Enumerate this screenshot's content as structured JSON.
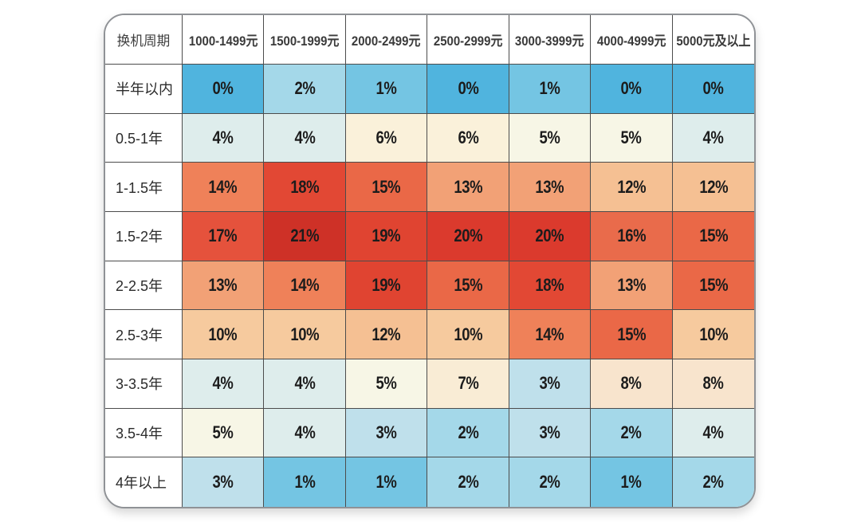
{
  "chart_data": {
    "type": "heatmap",
    "title": "",
    "corner_label": "换机周期",
    "columns": [
      "1000-1499元",
      "1500-1999元",
      "2000-2499元",
      "2500-2999元",
      "3000-3999元",
      "4000-4999元",
      "5000元及以上"
    ],
    "rows": [
      "半年以内",
      "0.5-1年",
      "1-1.5年",
      "1.5-2年",
      "2-2.5年",
      "2.5-3年",
      "3-3.5年",
      "3.5-4年",
      "4年以上"
    ],
    "values": [
      [
        0,
        2,
        1,
        0,
        1,
        0,
        0
      ],
      [
        4,
        4,
        6,
        6,
        5,
        5,
        4
      ],
      [
        14,
        18,
        15,
        13,
        13,
        12,
        12
      ],
      [
        17,
        21,
        19,
        20,
        20,
        16,
        15
      ],
      [
        13,
        14,
        19,
        15,
        18,
        13,
        15
      ],
      [
        10,
        10,
        12,
        10,
        14,
        15,
        10
      ],
      [
        4,
        4,
        5,
        7,
        3,
        8,
        8
      ],
      [
        5,
        4,
        3,
        2,
        3,
        2,
        4
      ],
      [
        3,
        1,
        1,
        2,
        2,
        1,
        2
      ]
    ],
    "unit": "%",
    "value_range": [
      0,
      21
    ],
    "legend": "none",
    "color_scale": {
      "0": "#50B4DE",
      "1": "#74C5E3",
      "2": "#A4D8E9",
      "3": "#BFE0EB",
      "4": "#DEEDEC",
      "5": "#F7F6E6",
      "6": "#FAF1DA",
      "7": "#F9ECD5",
      "8": "#F8E4CD",
      "10": "#F6CA9E",
      "12": "#F5C093",
      "13": "#F2A176",
      "14": "#EF8159",
      "15": "#EA6847",
      "16": "#E96B4B",
      "17": "#E5523C",
      "18": "#E24834",
      "19": "#E04431",
      "20": "#DB3A2D",
      "21": "#CE3127"
    }
  },
  "colors": {
    "page_bg": "#ffffff",
    "card_bg": "#ffffff",
    "card_border": "#8f9296",
    "grid_line": "#4c4c4c",
    "value_text": "#1c1c1c",
    "label_text": "#2b2b2b",
    "header_text": "#3a3a3a"
  }
}
